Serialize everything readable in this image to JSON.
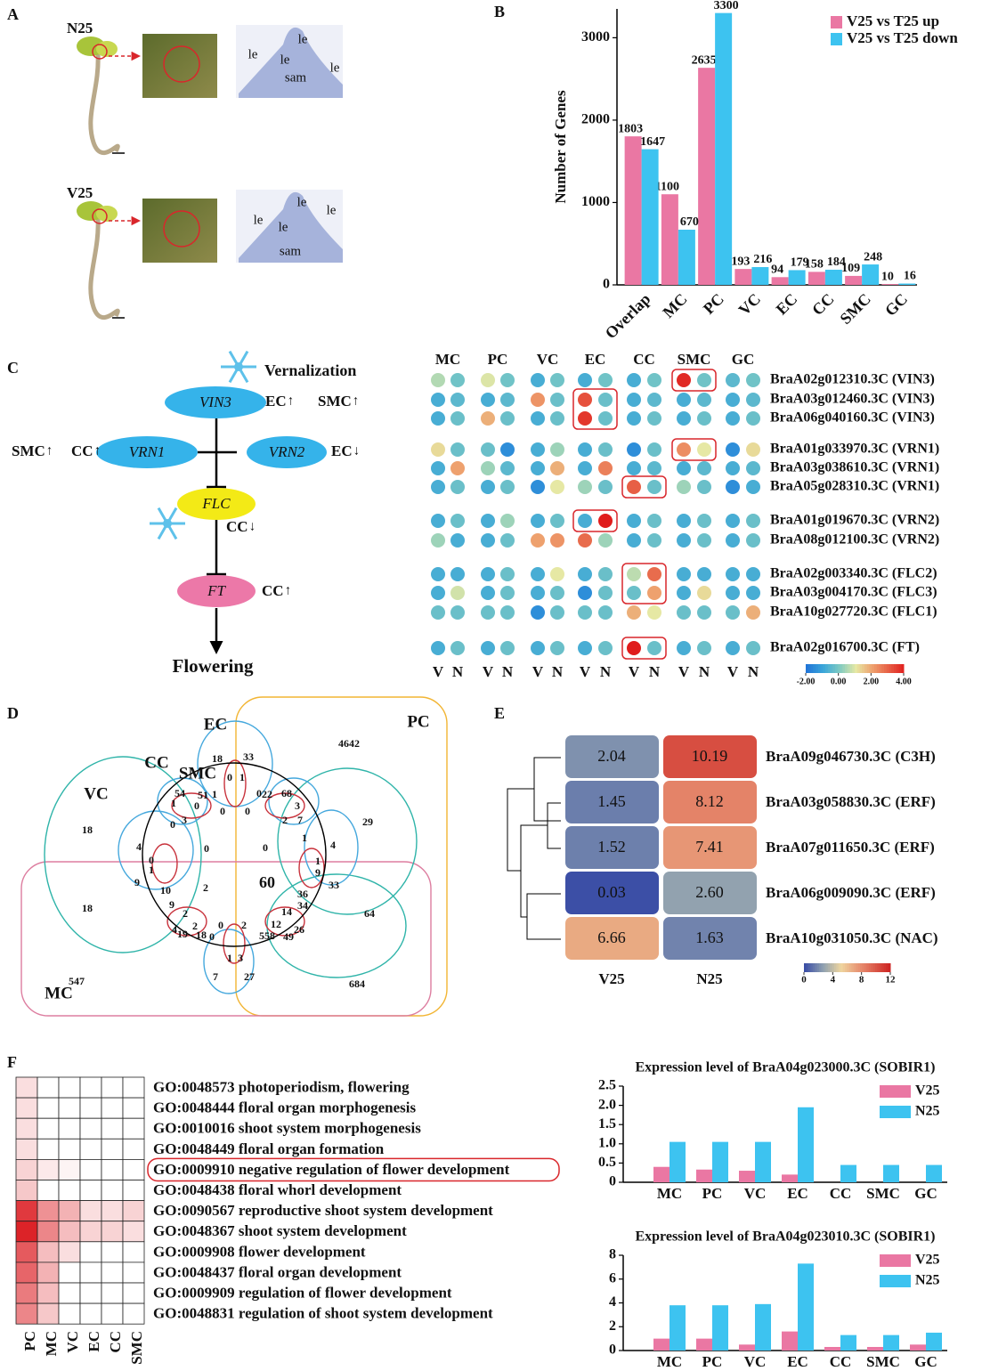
{
  "panel_labels": [
    "A",
    "B",
    "C",
    "D",
    "E",
    "F"
  ],
  "panel_a": {
    "samples": [
      {
        "name": "N25",
        "tissue_labels": [
          "le",
          "le",
          "le",
          "le",
          "sam"
        ]
      },
      {
        "name": "V25",
        "tissue_labels": [
          "le",
          "le",
          "le",
          "le",
          "sam"
        ]
      }
    ]
  },
  "pathway": {
    "stimulus": "Vernalization",
    "outcome": "Flowering",
    "nodes": [
      {
        "gene": "VIN3",
        "color": "#35b3ea",
        "notes": [
          {
            "cell": "EC",
            "arrow": "↑",
            "arrow_color": "#e0262b"
          },
          {
            "cell": "SMC",
            "arrow": "↑",
            "arrow_color": "#e0262b"
          }
        ]
      },
      {
        "gene": "VRN1",
        "color": "#35b3ea",
        "notes": [
          {
            "cell": "SMC",
            "arrow": "↑",
            "arrow_color": "#e0262b"
          },
          {
            "cell": "CC",
            "arrow": "↑",
            "arrow_color": "#e0262b"
          }
        ]
      },
      {
        "gene": "VRN2",
        "color": "#35b3ea",
        "notes": [
          {
            "cell": "EC",
            "arrow": "↓",
            "arrow_color": "#2a5bd7"
          }
        ]
      },
      {
        "gene": "FLC",
        "color": "#f3ea16",
        "notes": [
          {
            "cell": "CC",
            "arrow": "↓",
            "arrow_color": "#2a5bd7"
          }
        ]
      },
      {
        "gene": "FT",
        "color": "#ec78a8",
        "notes": [
          {
            "cell": "CC",
            "arrow": "↑",
            "arrow_color": "#e0262b"
          }
        ]
      }
    ]
  },
  "venn": {
    "sets": [
      "EC",
      "PC",
      "CC",
      "SMC",
      "VC",
      "MC"
    ],
    "counts": [
      18,
      33,
      4642,
      0,
      1,
      0,
      22,
      68,
      54,
      51,
      1,
      1,
      0,
      3,
      0,
      0,
      3,
      2,
      7,
      0,
      1,
      29,
      18,
      4,
      4,
      0,
      0,
      0,
      1,
      1,
      9,
      9,
      60,
      33,
      18,
      10,
      2,
      36,
      64,
      9,
      34,
      2,
      14,
      2,
      12,
      26,
      4,
      19,
      18,
      0,
      0,
      2,
      558,
      49,
      1,
      3,
      547,
      7,
      27,
      684
    ]
  },
  "chart_data": [
    {
      "type": "bar",
      "ylabel": "Number of Genes",
      "categories": [
        "Overlap",
        "MC",
        "PC",
        "VC",
        "EC",
        "CC",
        "SMC",
        "GC"
      ],
      "series": [
        {
          "name": "V25 vs T25 up",
          "color": "#ea77a3",
          "values": [
            1803,
            1100,
            2635,
            193,
            94,
            158,
            109,
            10
          ]
        },
        {
          "name": "V25 vs T25 down",
          "color": "#3dc3f0",
          "values": [
            1647,
            670,
            3300,
            216,
            179,
            184,
            248,
            16
          ]
        }
      ],
      "ylim": [
        0,
        3350
      ],
      "yticks": [
        0,
        1000,
        2000,
        3000
      ],
      "data_labels": true,
      "legend": "upper right"
    },
    {
      "type": "dot_heatmap",
      "columns": [
        "MC",
        "PC",
        "VC",
        "EC",
        "CC",
        "SMC",
        "GC"
      ],
      "conditions": [
        "V",
        "N"
      ],
      "rows": [
        "BraA02g012310.3C (VIN3)",
        "BraA03g012460.3C (VIN3)",
        "BraA06g040160.3C (VIN3)",
        "BraA01g033970.3C (VRN1)",
        "BraA03g038610.3C (VRN1)",
        "BraA05g028310.3C (VRN1)",
        "BraA01g019670.3C (VRN2)",
        "BraA08g012100.3C (VRN2)",
        "BraA02g003340.3C (FLC2)",
        "BraA03g004170.3C (FLC3)",
        "BraA10g027720.3C (FLC1)",
        "BraA02g016700.3C (FT)"
      ],
      "values": [
        [
          [
            0.5,
            -0.2
          ],
          [
            0.9,
            -0.2
          ],
          [
            -0.8,
            -0.2
          ],
          [
            -0.8,
            -0.2
          ],
          [
            -0.8,
            -0.2
          ],
          [
            3.8,
            -0.2
          ],
          [
            -0.5,
            -0.2
          ]
        ],
        [
          [
            -0.8,
            -0.5
          ],
          [
            -0.8,
            -0.5
          ],
          [
            2.2,
            -0.3
          ],
          [
            3.2,
            -0.3
          ],
          [
            -0.8,
            -0.5
          ],
          [
            -0.8,
            -0.5
          ],
          [
            -0.8,
            -0.5
          ]
        ],
        [
          [
            -0.8,
            -0.3
          ],
          [
            1.8,
            -0.3
          ],
          [
            -0.8,
            -0.3
          ],
          [
            3.6,
            -0.3
          ],
          [
            -0.8,
            -0.3
          ],
          [
            -0.8,
            -0.3
          ],
          [
            -0.8,
            -0.3
          ]
        ],
        [
          [
            1.2,
            -0.3
          ],
          [
            -0.3,
            -1.5
          ],
          [
            -0.8,
            0.3
          ],
          [
            -0.8,
            -0.3
          ],
          [
            -1.5,
            -0.3
          ],
          [
            2.3,
            1.0
          ],
          [
            -1.5,
            1.2
          ]
        ],
        [
          [
            -0.8,
            2.0
          ],
          [
            0.3,
            -0.5
          ],
          [
            -0.8,
            1.8
          ],
          [
            -0.8,
            2.5
          ],
          [
            -0.8,
            -0.5
          ],
          [
            -0.8,
            -0.5
          ],
          [
            -0.8,
            -0.5
          ]
        ],
        [
          [
            -0.8,
            -0.3
          ],
          [
            -0.8,
            -0.3
          ],
          [
            -1.5,
            1.0
          ],
          [
            0.3,
            -0.3
          ],
          [
            3.0,
            -0.3
          ],
          [
            0.3,
            -0.3
          ],
          [
            -1.5,
            -0.8
          ]
        ],
        [
          [
            -0.8,
            -0.3
          ],
          [
            -0.8,
            0.3
          ],
          [
            -0.8,
            -0.3
          ],
          [
            -0.8,
            4.0
          ],
          [
            -0.8,
            -0.3
          ],
          [
            -0.8,
            -0.3
          ],
          [
            -0.8,
            -0.3
          ]
        ],
        [
          [
            0.3,
            -0.8
          ],
          [
            -0.8,
            -0.3
          ],
          [
            2.0,
            2.2
          ],
          [
            2.8,
            0.3
          ],
          [
            -0.8,
            -0.3
          ],
          [
            -0.8,
            -0.3
          ],
          [
            -0.8,
            -0.3
          ]
        ],
        [
          [
            -0.8,
            -0.8
          ],
          [
            -0.8,
            -0.3
          ],
          [
            -0.8,
            1.0
          ],
          [
            -0.8,
            -0.3
          ],
          [
            0.6,
            2.8
          ],
          [
            -0.8,
            -0.8
          ],
          [
            -0.8,
            -0.8
          ]
        ],
        [
          [
            -0.8,
            0.8
          ],
          [
            -0.8,
            -0.3
          ],
          [
            -0.8,
            -0.3
          ],
          [
            -1.5,
            -0.3
          ],
          [
            -0.3,
            2.0
          ],
          [
            -0.8,
            1.2
          ],
          [
            -0.8,
            -0.8
          ]
        ],
        [
          [
            -0.3,
            -0.3
          ],
          [
            -0.3,
            -0.3
          ],
          [
            -1.5,
            -0.3
          ],
          [
            -0.3,
            -0.3
          ],
          [
            1.8,
            1.0
          ],
          [
            -0.3,
            -0.3
          ],
          [
            -0.3,
            1.8
          ]
        ],
        [
          [
            -0.8,
            -0.3
          ],
          [
            -0.8,
            -0.3
          ],
          [
            -0.8,
            -0.3
          ],
          [
            -0.8,
            -0.3
          ],
          [
            4.0,
            -0.3
          ],
          [
            -0.8,
            -0.3
          ],
          [
            -0.8,
            -0.3
          ]
        ]
      ],
      "zlim": [
        -2,
        4
      ],
      "colorbar_ticks": [
        {
          "value": -2,
          "label": "-2.00"
        },
        {
          "value": 0,
          "label": "0.00"
        },
        {
          "value": 2,
          "label": "2.00"
        },
        {
          "value": 4,
          "label": "4.00"
        }
      ]
    },
    {
      "type": "heatmap",
      "rows": [
        "BraA09g046730.3C (C3H)",
        "BraA03g058830.3C (ERF)",
        "BraA07g011650.3C (ERF)",
        "BraA06g009090.3C (ERF)",
        "BraA10g031050.3C (NAC)"
      ],
      "series": [
        {
          "name": "V25",
          "values": [
            2.04,
            1.45,
            1.52,
            0.03,
            6.66
          ]
        },
        {
          "name": "N25",
          "values": [
            10.19,
            8.12,
            7.41,
            2.6,
            1.63
          ],
          "value_labels": [
            "10.19",
            "8.12",
            "7.41",
            "2.60",
            "1.63"
          ]
        }
      ],
      "zlim": [
        0,
        12
      ],
      "colorbar_ticks": [
        0,
        4,
        8,
        12
      ]
    },
    {
      "type": "grid_heatmap",
      "columns": [
        "PC",
        "MC",
        "VC",
        "EC",
        "CC",
        "SMC"
      ],
      "rows": [
        "GO:0048573 photoperiodism, flowering",
        "GO:0048444 floral organ morphogenesis",
        "GO:0010016 shoot system morphogenesis",
        "GO:0048449 floral organ formation",
        "GO:0009910 negative regulation of flower development",
        "GO:0048438 floral whorl development",
        "GO:0090567 reproductive shoot system development",
        "GO:0048367 shoot system development",
        "GO:0009908 flower development",
        "GO:0048437 floral organ development",
        "GO:0009909 regulation of flower development",
        "GO:0048831 regulation of shoot system development"
      ],
      "values": [
        [
          0.15,
          0,
          0,
          0,
          0,
          0
        ],
        [
          0.15,
          0,
          0,
          0,
          0,
          0
        ],
        [
          0.15,
          0,
          0,
          0,
          0,
          0
        ],
        [
          0.15,
          0,
          0,
          0,
          0,
          0
        ],
        [
          0.2,
          0.1,
          0.05,
          0,
          0,
          0
        ],
        [
          0.25,
          0,
          0,
          0,
          0,
          0
        ],
        [
          0.9,
          0.5,
          0.35,
          0.15,
          0.15,
          0.2
        ],
        [
          1.0,
          0.55,
          0.3,
          0.2,
          0.2,
          0.15
        ],
        [
          0.75,
          0.3,
          0.15,
          0,
          0,
          0
        ],
        [
          0.7,
          0.35,
          0,
          0,
          0,
          0
        ],
        [
          0.6,
          0.3,
          0,
          0,
          0,
          0
        ],
        [
          0.55,
          0.25,
          0,
          0,
          0,
          0
        ]
      ],
      "zlim": [
        0,
        1
      ],
      "color": "#dc2328"
    },
    {
      "type": "bar",
      "title": "Expression level of BraA04g023000.3C (SOBIR1)",
      "categories": [
        "MC",
        "PC",
        "VC",
        "EC",
        "CC",
        "SMC",
        "GC"
      ],
      "series": [
        {
          "name": "V25",
          "color": "#ea77a3",
          "values": [
            0.4,
            0.33,
            0.3,
            0.2,
            0,
            0,
            0
          ]
        },
        {
          "name": "N25",
          "color": "#3dc3f0",
          "values": [
            1.05,
            1.05,
            1.05,
            1.95,
            0.45,
            0.45,
            0.45
          ]
        }
      ],
      "ylim": [
        0,
        2.5
      ],
      "yticks": [
        0,
        0.5,
        {
          "value": 1,
          "label": "1.0"
        },
        1.5,
        {
          "value": 2,
          "label": "2.0"
        },
        2.5
      ],
      "legend": "upper right"
    },
    {
      "type": "bar",
      "title": "Expression level of BraA04g023010.3C (SOBIR1)",
      "categories": [
        "MC",
        "PC",
        "VC",
        "EC",
        "CC",
        "SMC",
        "GC"
      ],
      "series": [
        {
          "name": "V25",
          "color": "#ea77a3",
          "values": [
            1.0,
            1.0,
            0.5,
            1.6,
            0.3,
            0.3,
            0.5
          ]
        },
        {
          "name": "N25",
          "color": "#3dc3f0",
          "values": [
            3.8,
            3.8,
            3.9,
            7.3,
            1.3,
            1.3,
            1.5
          ]
        }
      ],
      "ylim": [
        0,
        8
      ],
      "yticks": [
        0,
        2,
        4,
        6,
        8
      ],
      "legend": "upper right"
    }
  ]
}
